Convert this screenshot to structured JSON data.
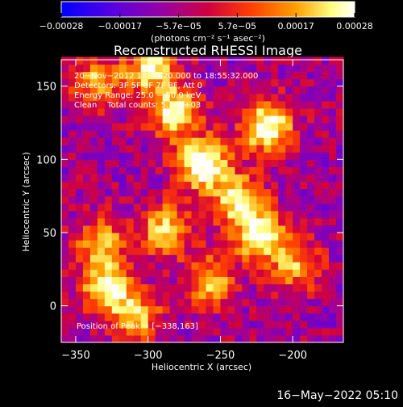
{
  "chart_data": {
    "type": "heatmap",
    "title": "Reconstructed RHESSI Image",
    "xlabel": "Heliocentric X (arcsec)",
    "ylabel": "Heliocentric Y (arcsec)",
    "xlim": [
      -360,
      -165
    ],
    "ylim": [
      -25,
      168
    ],
    "xticks": [
      {
        "value": -350,
        "label": "−350"
      },
      {
        "value": -300,
        "label": "−300"
      },
      {
        "value": -250,
        "label": "−250"
      },
      {
        "value": -200,
        "label": "−200"
      }
    ],
    "yticks": [
      {
        "value": 0,
        "label": "0"
      },
      {
        "value": 50,
        "label": "50"
      },
      {
        "value": 100,
        "label": "100"
      },
      {
        "value": 150,
        "label": "150"
      }
    ],
    "colorbar": {
      "range": [
        -0.00028,
        0.00028
      ],
      "tick_labels": [
        "−0.00028",
        "−0.00017",
        "−5.7e−05",
        "5.7e−05",
        "0.00017",
        "0.00028"
      ],
      "unit_label": "(photons cm⁻² s⁻¹ asec⁻²)",
      "colors": [
        "#0000ff",
        "#7000c8",
        "#b80060",
        "#ff5000",
        "#ffb000",
        "#ffffb0",
        "#ffffff"
      ]
    },
    "bright_regions": [
      {
        "x": -300,
        "y": 160,
        "level": 0.75
      },
      {
        "x": -337,
        "y": 150,
        "level": 0.6
      },
      {
        "x": -285,
        "y": 130,
        "level": 0.8
      },
      {
        "x": -220,
        "y": 120,
        "level": 0.95
      },
      {
        "x": -265,
        "y": 95,
        "level": 1.0
      },
      {
        "x": -240,
        "y": 70,
        "level": 0.8
      },
      {
        "x": -225,
        "y": 45,
        "level": 0.85
      },
      {
        "x": -290,
        "y": 50,
        "level": 0.7
      },
      {
        "x": -335,
        "y": 40,
        "level": 0.6
      },
      {
        "x": -330,
        "y": 10,
        "level": 0.85
      },
      {
        "x": -260,
        "y": 15,
        "level": 0.6
      },
      {
        "x": -200,
        "y": 25,
        "level": 0.55
      },
      {
        "x": -310,
        "y": -10,
        "level": 0.6
      }
    ],
    "info_lines": [
      "20−Nov−2012 18:50:20.000 to 18:55:32.000",
      "Detectors: 3F 5F 6F 7F 8F, Att 0",
      "Energy Range: 25.0 − 50.0 keV",
      "Clean    Total counts: 5.36E+03"
    ],
    "peak_label": "Position of Peak = [−338,163]"
  },
  "footer": {
    "timestamp": "16−May−2022 05:10"
  }
}
